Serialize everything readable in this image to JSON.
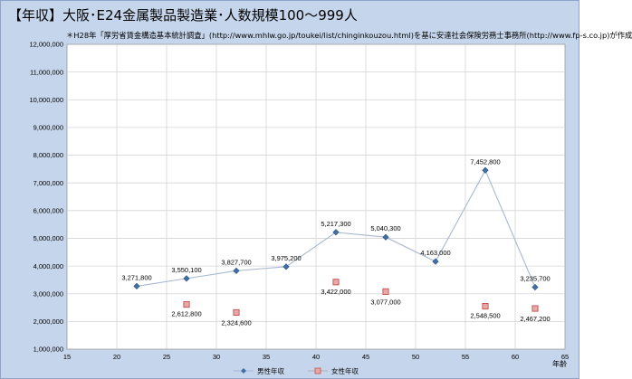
{
  "chart_data": {
    "type": "line",
    "title": "【年収】大阪･E24金属製品製造業･人数規模100～999人",
    "subtitle": "＊H28年「厚労省賃金構造基本統計調査」(http://www.mhlw.go.jp/toukei/list/chinginkouzou.html)を基に安達社会保険労務士事務所(http://www.fp-s.co.jp)が作成",
    "xlabel": "年齢",
    "ylabel": "",
    "xlim": [
      15,
      65
    ],
    "ylim": [
      1000000,
      12000000
    ],
    "x_ticks": [
      "15",
      "20",
      "25",
      "30",
      "35",
      "40",
      "45",
      "50",
      "55",
      "60",
      "65"
    ],
    "y_ticks": [
      "1,000,000",
      "2,000,000",
      "3,000,000",
      "4,000,000",
      "5,000,000",
      "6,000,000",
      "7,000,000",
      "8,000,000",
      "9,000,000",
      "10,000,000",
      "11,000,000",
      "12,000,000"
    ],
    "grid": true,
    "legend": "bottom",
    "series": [
      {
        "name": "男性年収",
        "color": "#4a7ab0",
        "marker": "diamond",
        "line": true,
        "points": [
          {
            "x": 22,
            "y": 3271800,
            "label": "3,271,800"
          },
          {
            "x": 27,
            "y": 3550100,
            "label": "3,550,100"
          },
          {
            "x": 32,
            "y": 3827700,
            "label": "3,827,700"
          },
          {
            "x": 37,
            "y": 3975200,
            "label": "3,975,200"
          },
          {
            "x": 42,
            "y": 5217300,
            "label": "5,217,300"
          },
          {
            "x": 47,
            "y": 5040300,
            "label": "5,040,300"
          },
          {
            "x": 52,
            "y": 4163000,
            "label": "4,163,000"
          },
          {
            "x": 57,
            "y": 7452800,
            "label": "7,452,800"
          },
          {
            "x": 62,
            "y": 3235700,
            "label": "3,235,700"
          }
        ]
      },
      {
        "name": "女性年収",
        "color": "#c0504d",
        "marker": "square",
        "line": false,
        "points": [
          {
            "x": 27,
            "y": 2612800,
            "label": "2,612,800"
          },
          {
            "x": 32,
            "y": 2324600,
            "label": "2,324,600"
          },
          {
            "x": 42,
            "y": 3422000,
            "label": "3,422,000"
          },
          {
            "x": 47,
            "y": 3077000,
            "label": "3,077,000"
          },
          {
            "x": 57,
            "y": 2548500,
            "label": "2,548,500"
          },
          {
            "x": 62,
            "y": 2467200,
            "label": "2,467,200"
          }
        ]
      }
    ]
  }
}
